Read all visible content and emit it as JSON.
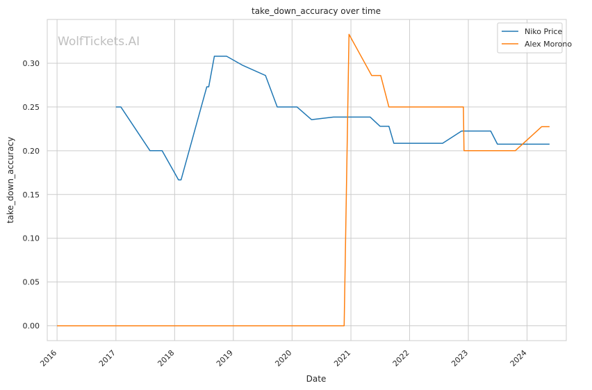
{
  "watermark": "WolfTickets.AI",
  "chart_data": {
    "type": "line",
    "title": "take_down_accuracy over time",
    "xlabel": "Date",
    "ylabel": "take_down_accuracy",
    "x_axis_type": "date",
    "xlim": [
      "2015-11-01",
      "2024-09-01"
    ],
    "ylim": [
      -0.017,
      0.35
    ],
    "x_ticks": [
      "2016",
      "2017",
      "2018",
      "2019",
      "2020",
      "2021",
      "2022",
      "2023",
      "2024"
    ],
    "y_ticks": [
      "0.00",
      "0.05",
      "0.10",
      "0.15",
      "0.20",
      "0.25",
      "0.30"
    ],
    "grid": true,
    "legend_position": "top-right",
    "series": [
      {
        "name": "Niko Price",
        "color": "#1f77b4",
        "points": [
          [
            "2017-01-01",
            0.25
          ],
          [
            "2017-02-01",
            0.25
          ],
          [
            "2017-08-01",
            0.2
          ],
          [
            "2017-10-15",
            0.2
          ],
          [
            "2018-01-25",
            0.1667
          ],
          [
            "2018-02-10",
            0.1667
          ],
          [
            "2018-07-20",
            0.273
          ],
          [
            "2018-08-01",
            0.273
          ],
          [
            "2018-09-05",
            0.308
          ],
          [
            "2018-11-20",
            0.308
          ],
          [
            "2019-03-01",
            0.2975
          ],
          [
            "2019-07-20",
            0.286
          ],
          [
            "2019-10-01",
            0.25
          ],
          [
            "2020-02-01",
            0.25
          ],
          [
            "2020-05-01",
            0.2355
          ],
          [
            "2020-09-15",
            0.2385
          ],
          [
            "2021-05-01",
            0.2385
          ],
          [
            "2021-07-01",
            0.228
          ],
          [
            "2021-08-25",
            0.228
          ],
          [
            "2021-09-25",
            0.2085
          ],
          [
            "2022-07-25",
            0.2085
          ],
          [
            "2022-11-20",
            0.2225
          ],
          [
            "2023-05-20",
            0.2225
          ],
          [
            "2023-07-01",
            0.2075
          ],
          [
            "2024-05-20",
            0.2075
          ]
        ]
      },
      {
        "name": "Alex Morono",
        "color": "#ff7f0e",
        "points": [
          [
            "2016-01-01",
            0.0
          ],
          [
            "2020-11-20",
            0.0
          ],
          [
            "2020-12-20",
            0.333
          ],
          [
            "2021-05-10",
            0.286
          ],
          [
            "2021-07-05",
            0.286
          ],
          [
            "2021-08-25",
            0.25
          ],
          [
            "2022-12-01",
            0.25
          ],
          [
            "2022-12-05",
            0.2
          ],
          [
            "2023-10-20",
            0.2
          ],
          [
            "2024-04-01",
            0.2275
          ],
          [
            "2024-05-20",
            0.2275
          ]
        ]
      }
    ]
  }
}
